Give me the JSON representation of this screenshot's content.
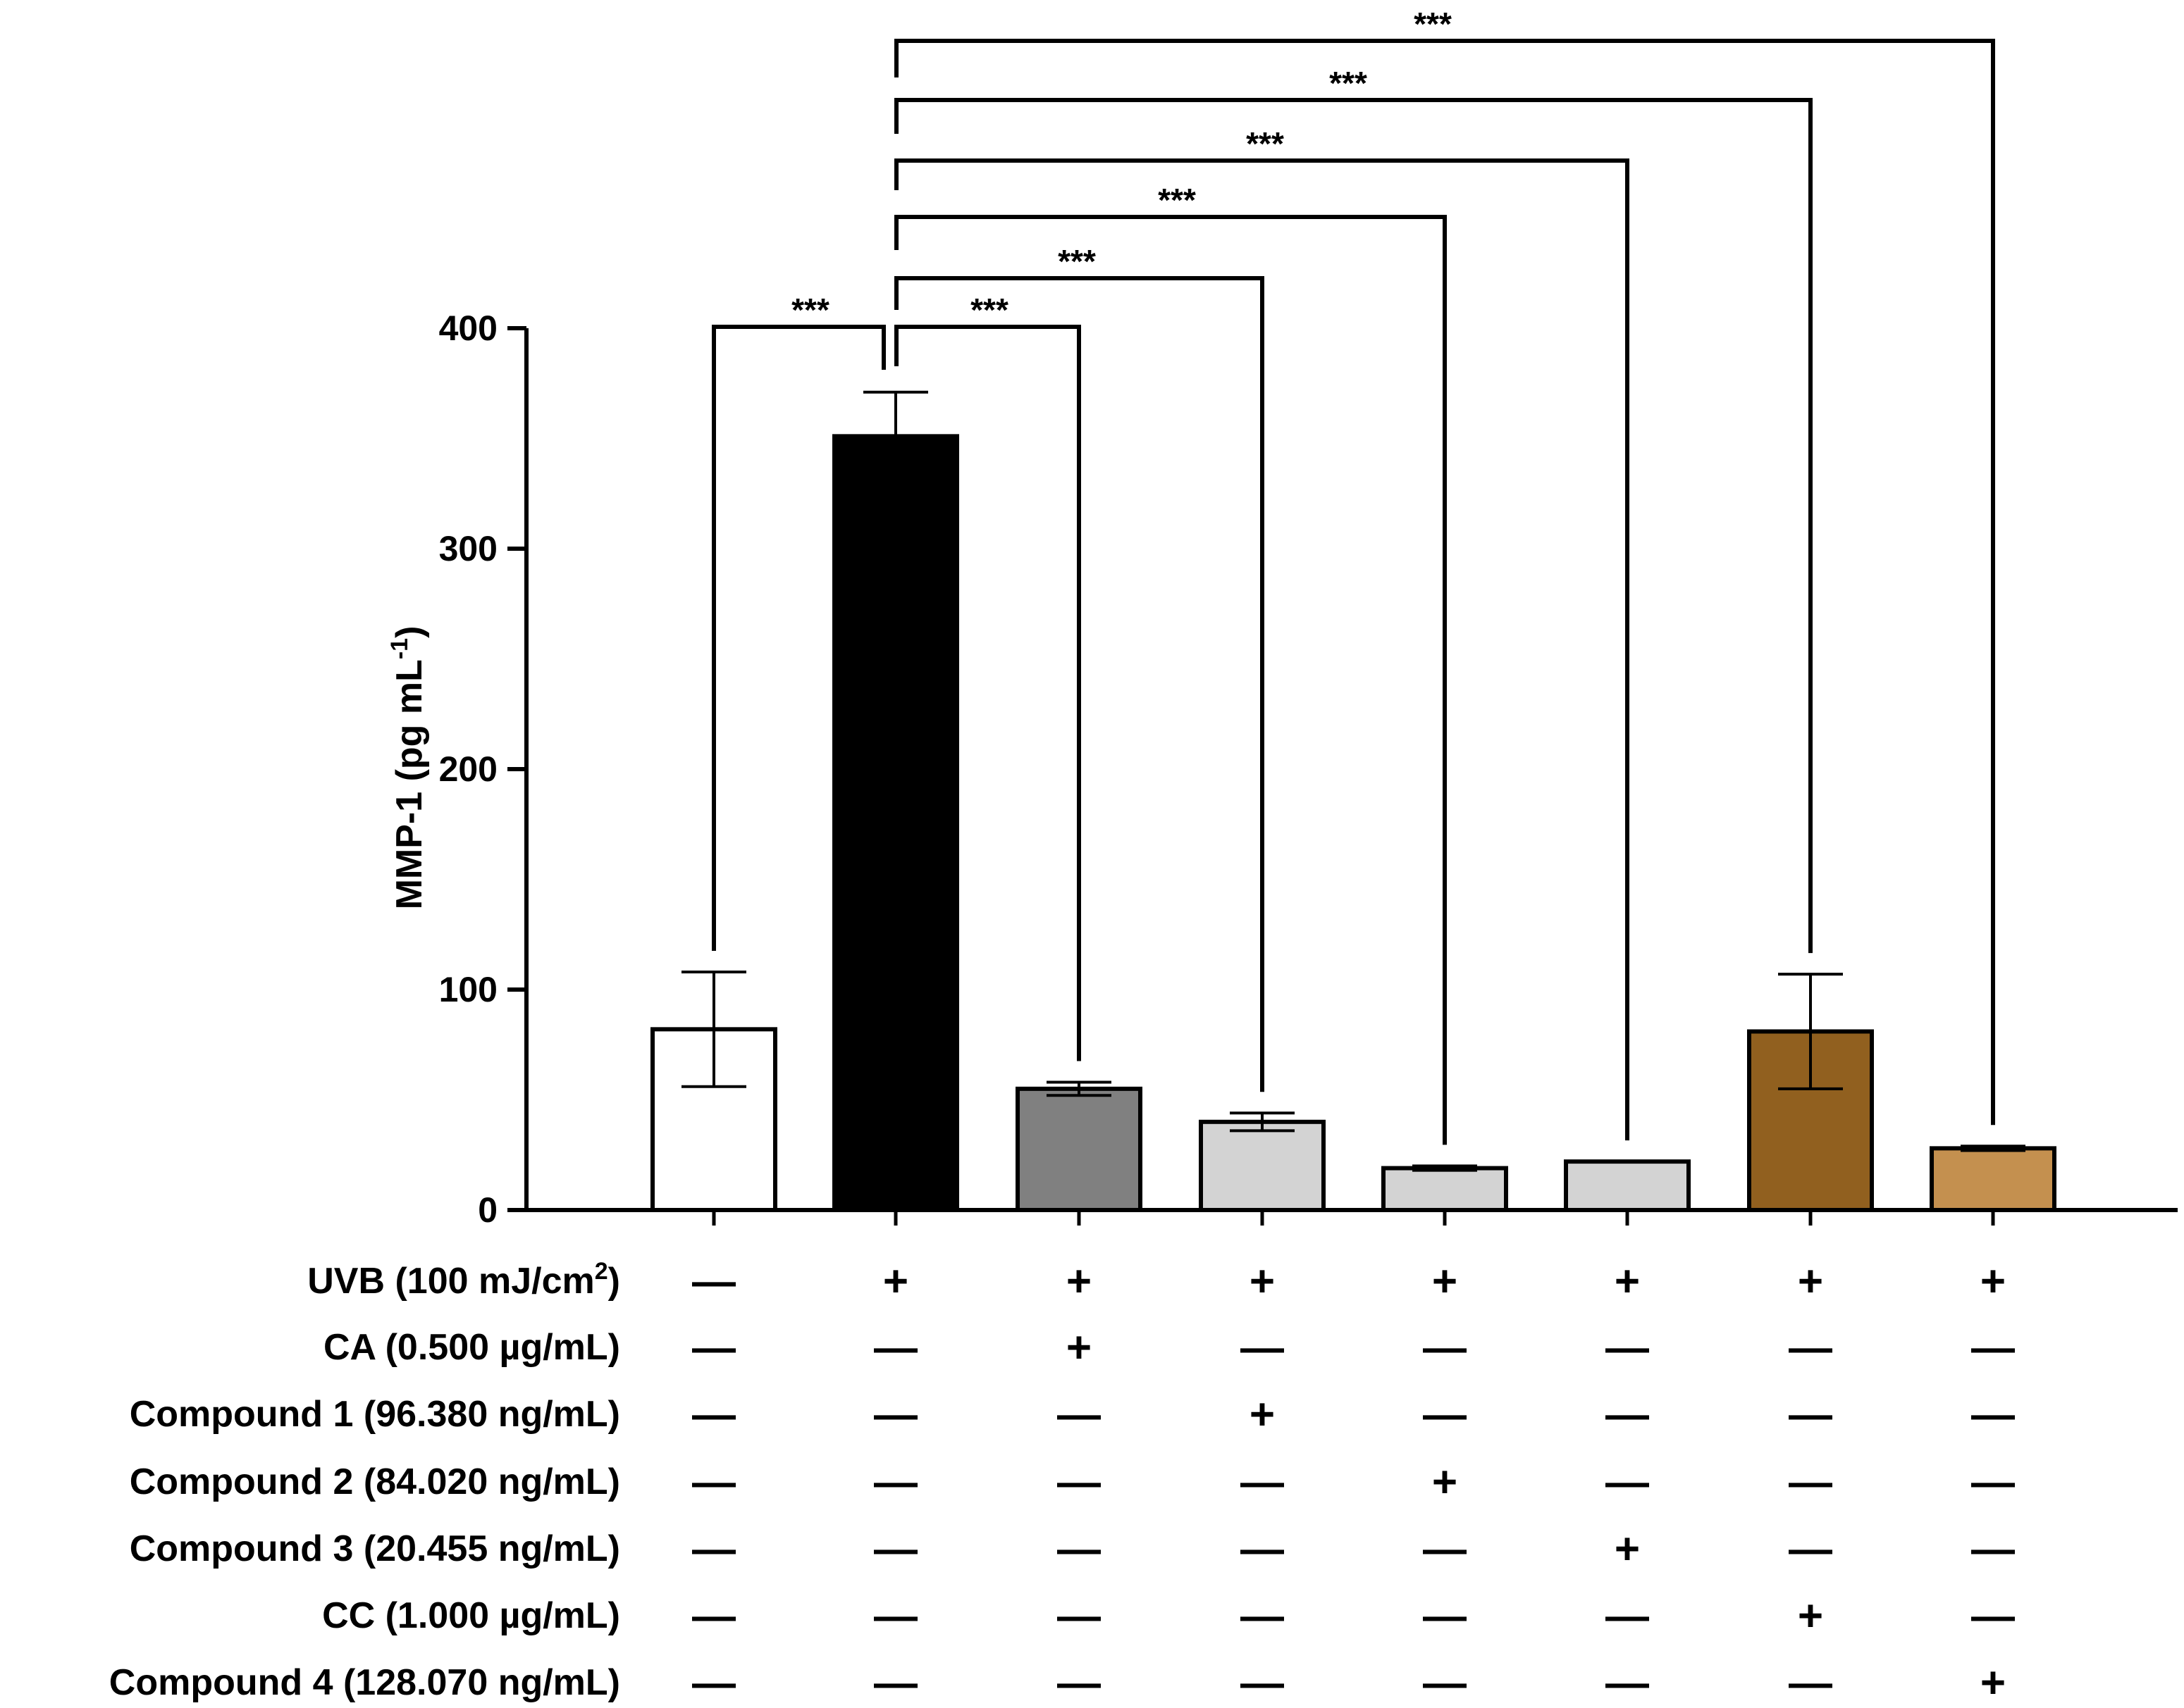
{
  "chart_data": {
    "type": "bar",
    "title": "",
    "ylabel": "MMP-1 (pg mL",
    "ylabel_sup": "-1",
    "ylabel_end": ")",
    "ylim": [
      0,
      400
    ],
    "yticks": [
      0,
      100,
      200,
      300,
      400
    ],
    "ytick_labels": [
      "0",
      "100",
      "200",
      "300",
      "400"
    ],
    "categories": [
      "Control",
      "UVB",
      "UVB + CA",
      "UVB + Compound 1",
      "UVB + Compound 2",
      "UVB + Compound 3",
      "UVB + CC",
      "UVB + Compound 4"
    ],
    "values": [
      82,
      351,
      55,
      40,
      19,
      22,
      81,
      28
    ],
    "error": [
      26,
      20,
      3,
      4,
      1,
      0,
      26,
      1
    ],
    "bar_colors": [
      "#ffffff",
      "#000000",
      "#808080",
      "#d3d3d3",
      "#d3d3d3",
      "#d3d3d3",
      "#91601f",
      "#c4904f"
    ],
    "significance": [
      {
        "from": 0,
        "to": 1,
        "label": "***"
      },
      {
        "from": 1,
        "to": 2,
        "label": "***"
      },
      {
        "from": 1,
        "to": 3,
        "label": "***"
      },
      {
        "from": 1,
        "to": 4,
        "label": "***"
      },
      {
        "from": 1,
        "to": 5,
        "label": "***"
      },
      {
        "from": 1,
        "to": 6,
        "label": "***"
      },
      {
        "from": 1,
        "to": 7,
        "label": "***"
      }
    ],
    "treatments": [
      {
        "label": "UVB (100 mJ/cm",
        "sup": "2",
        "suffix": ")",
        "signs": [
          "—",
          "+",
          "+",
          "+",
          "+",
          "+",
          "+",
          "+"
        ]
      },
      {
        "label": "CA (0.500 µg/mL)",
        "signs": [
          "—",
          "—",
          "+",
          "—",
          "—",
          "—",
          "—",
          "—"
        ]
      },
      {
        "label": "Compound 1 (96.380 ng/mL)",
        "signs": [
          "—",
          "—",
          "—",
          "+",
          "—",
          "—",
          "—",
          "—"
        ]
      },
      {
        "label": "Compound 2 (84.020 ng/mL)",
        "signs": [
          "—",
          "—",
          "—",
          "—",
          "+",
          "—",
          "—",
          "—"
        ]
      },
      {
        "label": "Compound 3 (20.455 ng/mL)",
        "signs": [
          "—",
          "—",
          "—",
          "—",
          "—",
          "+",
          "—",
          "—"
        ]
      },
      {
        "label": "CC (1.000 µg/mL)",
        "signs": [
          "—",
          "—",
          "—",
          "—",
          "—",
          "—",
          "+",
          "—"
        ]
      },
      {
        "label": "Compound 4 (128.070 ng/mL)",
        "signs": [
          "—",
          "—",
          "—",
          "—",
          "—",
          "—",
          "—",
          "+"
        ]
      }
    ]
  }
}
